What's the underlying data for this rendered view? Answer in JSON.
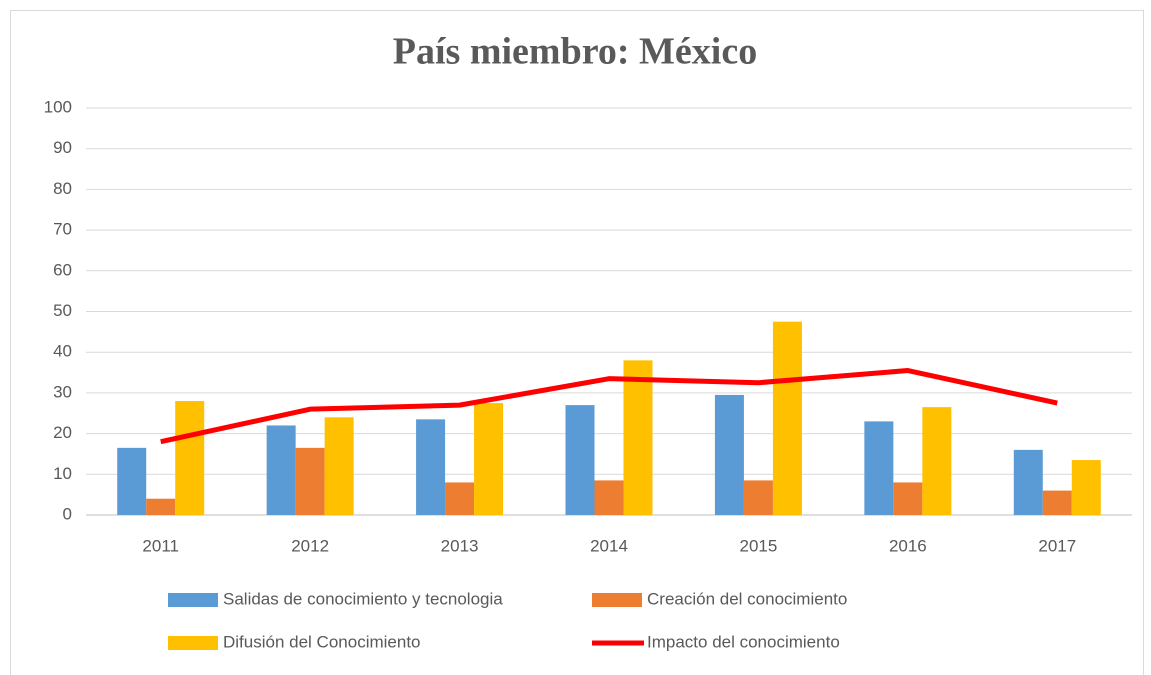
{
  "chart_data": {
    "type": "bar",
    "title": "País miembro: México",
    "categories": [
      "2011",
      "2012",
      "2013",
      "2014",
      "2015",
      "2016",
      "2017"
    ],
    "series": [
      {
        "name": "Salidas de conocimiento y tecnologia",
        "color": "#5b9bd5",
        "values": [
          16.5,
          22,
          23.5,
          27,
          29.5,
          23,
          16
        ]
      },
      {
        "name": "Creación del conocimiento",
        "color": "#ed7d31",
        "values": [
          4,
          16.5,
          8,
          8.5,
          8.5,
          8,
          6
        ]
      },
      {
        "name": "Difusión del Conocimiento",
        "color": "#ffc000",
        "values": [
          28,
          24,
          27.5,
          38,
          47.5,
          26.5,
          13.5
        ]
      },
      {
        "name": "Impacto del conocimiento",
        "color": "#ff0000",
        "type": "line",
        "values": [
          18,
          26,
          27,
          33.5,
          32.5,
          35.5,
          27.5
        ]
      }
    ],
    "ylim": [
      0,
      100
    ],
    "yticks": [
      0,
      10,
      20,
      30,
      40,
      50,
      60,
      70,
      80,
      90,
      100
    ],
    "grid": true
  }
}
